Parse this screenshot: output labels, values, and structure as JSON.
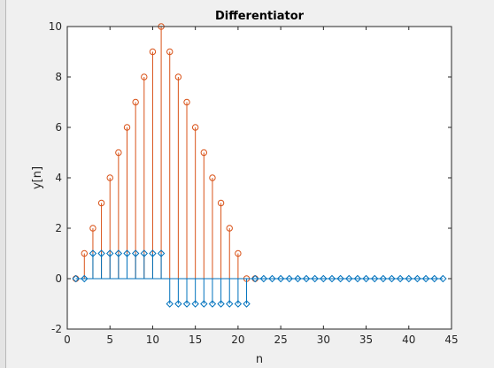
{
  "colors": {
    "series_pos": "#d95319",
    "series_diff": "#0072bd",
    "axes": "#262626",
    "background": "#f0f0f0",
    "plot_bg": "#ffffff"
  },
  "chart_data": {
    "type": "stem",
    "title": "Differentiator",
    "xlabel": "n",
    "ylabel": "y[n]",
    "xlim": [
      0,
      45
    ],
    "ylim": [
      -2,
      10
    ],
    "xticks": [
      "0",
      "5",
      "10",
      "15",
      "20",
      "25",
      "30",
      "35",
      "40",
      "45"
    ],
    "yticks": [
      "-2",
      "0",
      "2",
      "4",
      "6",
      "8",
      "10"
    ],
    "grid": false,
    "legend": "none",
    "series": [
      {
        "color": "#d95319",
        "marker": "circle",
        "x": [
          1,
          2,
          3,
          4,
          5,
          6,
          7,
          8,
          9,
          10,
          11,
          12,
          13,
          14,
          15,
          16,
          17,
          18,
          19,
          20,
          21,
          22
        ],
        "values": [
          0,
          1,
          2,
          3,
          4,
          5,
          6,
          7,
          8,
          9,
          10,
          9,
          8,
          7,
          6,
          5,
          4,
          3,
          2,
          1,
          0,
          0
        ]
      },
      {
        "color": "#0072bd",
        "marker": "diamond",
        "x": [
          1,
          2,
          3,
          4,
          5,
          6,
          7,
          8,
          9,
          10,
          11,
          12,
          13,
          14,
          15,
          16,
          17,
          18,
          19,
          20,
          21,
          22,
          23,
          24,
          25,
          26,
          27,
          28,
          29,
          30,
          31,
          32,
          33,
          34,
          35,
          36,
          37,
          38,
          39,
          40,
          41,
          42,
          43,
          44
        ],
        "values": [
          0,
          0,
          1,
          1,
          1,
          1,
          1,
          1,
          1,
          1,
          1,
          -1,
          -1,
          -1,
          -1,
          -1,
          -1,
          -1,
          -1,
          -1,
          -1,
          0,
          0,
          0,
          0,
          0,
          0,
          0,
          0,
          0,
          0,
          0,
          0,
          0,
          0,
          0,
          0,
          0,
          0,
          0,
          0,
          0,
          0,
          0
        ]
      }
    ]
  }
}
